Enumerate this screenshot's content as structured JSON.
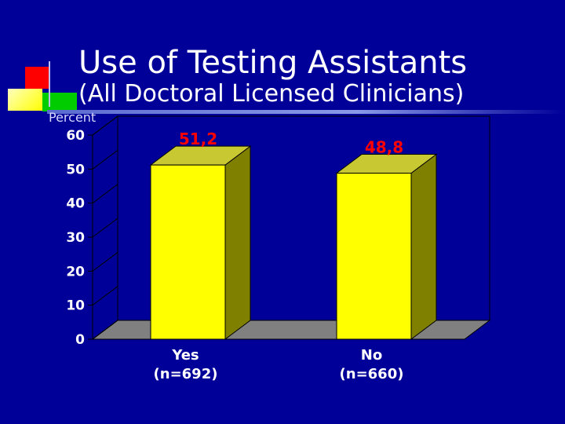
{
  "slide": {
    "title": "Use of Testing Assistants",
    "subtitle": "(All Doctoral Licensed Clinicians)",
    "logo_colors": [
      "#ff0000",
      "#ffff00",
      "#00cc00",
      "#0000cc"
    ]
  },
  "chart_data": {
    "type": "bar",
    "bar_style": "3d",
    "categories": [
      "Yes (n=692)",
      "No (n=660)"
    ],
    "category_lines": [
      [
        "Yes",
        "(n=692)"
      ],
      [
        "No",
        "(n=660)"
      ]
    ],
    "values": [
      51.2,
      48.8
    ],
    "data_labels": [
      "51,2",
      "48,8"
    ],
    "ylabel": "Percent",
    "ylim": [
      0,
      60
    ],
    "yticks": [
      0,
      10,
      20,
      30,
      40,
      50,
      60
    ],
    "grid": false,
    "legend": "none",
    "colors": {
      "bar_front": "#ffff00",
      "bar_top": "#c8c832",
      "bar_side": "#808000",
      "floor": "#808080",
      "wall": "#000099",
      "data_label": "#ff0000",
      "axis_text": "#ffffff"
    }
  }
}
